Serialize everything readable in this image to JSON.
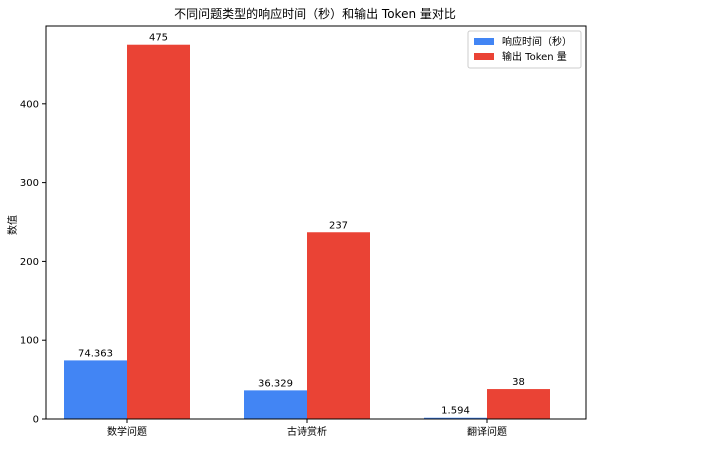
{
  "chart_data": {
    "type": "bar",
    "title": "不同问题类型的响应时间（秒）和输出 Token 量对比",
    "xlabel": "",
    "ylabel": "数值",
    "categories": [
      "数学问题",
      "古诗赏析",
      "翻译问题"
    ],
    "series": [
      {
        "name": "响应时间（秒）",
        "values": [
          74.363,
          36.329,
          1.594
        ],
        "labels": [
          "74.363",
          "36.329",
          "1.594"
        ],
        "color": "#4285f4"
      },
      {
        "name": "输出 Token 量",
        "values": [
          475,
          237,
          38
        ],
        "labels": [
          "475",
          "237",
          "38"
        ],
        "color": "#ea4335"
      }
    ],
    "ylim": [
      0,
      498.75
    ],
    "yticks": [
      0,
      100,
      200,
      300,
      400
    ],
    "grid": false,
    "legend": "top-right"
  }
}
